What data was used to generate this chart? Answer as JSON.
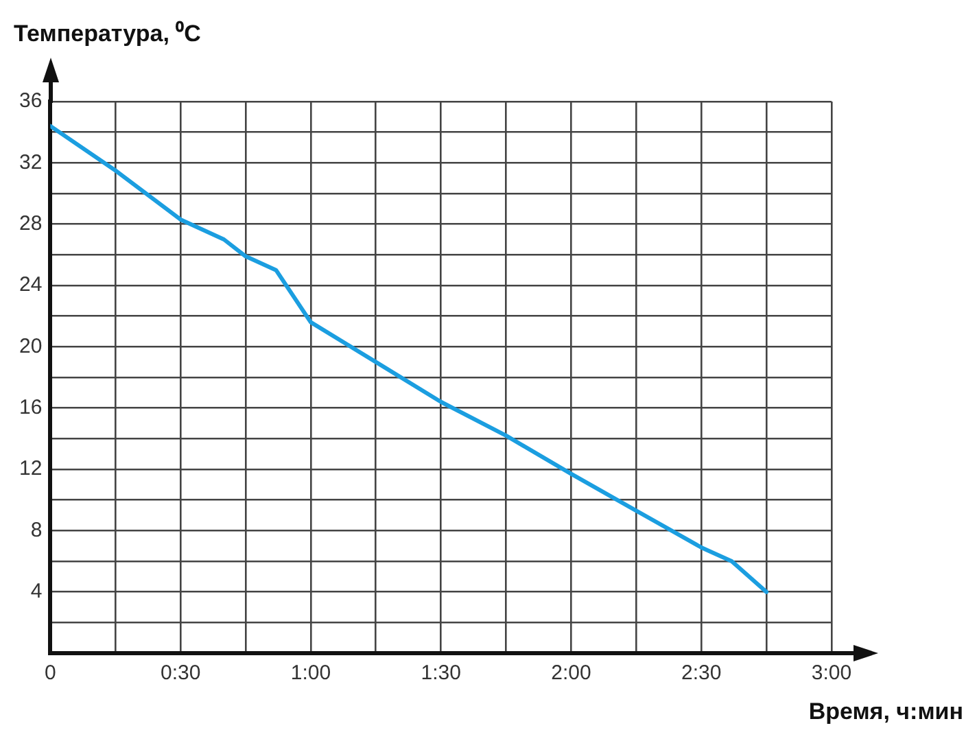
{
  "chart_data": {
    "type": "line",
    "xlabel": "Время, ч:мин",
    "ylabel": "Температура, ⁰C",
    "x": [
      0,
      15,
      30,
      40,
      45,
      52,
      60,
      75,
      90,
      105,
      120,
      135,
      150,
      157,
      165
    ],
    "series": [
      {
        "color": "#1b9ee0",
        "values": [
          34.4,
          31.5,
          28.3,
          27,
          25.9,
          25,
          21.6,
          19,
          16.4,
          14.2,
          11.7,
          9.3,
          6.9,
          6,
          4
        ]
      }
    ],
    "xlim": [
      0,
      180
    ],
    "xticks": [
      {
        "value": 0,
        "label": "0"
      },
      {
        "value": 15,
        "label": null
      },
      {
        "value": 30,
        "label": "0:30"
      },
      {
        "value": 45,
        "label": null
      },
      {
        "value": 60,
        "label": "1:00"
      },
      {
        "value": 75,
        "label": null
      },
      {
        "value": 90,
        "label": "1:30"
      },
      {
        "value": 105,
        "label": null
      },
      {
        "value": 120,
        "label": "2:00"
      },
      {
        "value": 135,
        "label": null
      },
      {
        "value": 150,
        "label": "2:30"
      },
      {
        "value": 165,
        "label": null
      },
      {
        "value": 180,
        "label": "3:00"
      }
    ],
    "ylim": [
      0,
      36
    ],
    "yticks": [
      {
        "value": 0,
        "label": null
      },
      {
        "value": 2,
        "label": null
      },
      4,
      {
        "value": 6,
        "label": null
      },
      8,
      {
        "value": 10,
        "label": null
      },
      12,
      {
        "value": 14,
        "label": null
      },
      16,
      {
        "value": 18,
        "label": null
      },
      20,
      {
        "value": 22,
        "label": null
      },
      24,
      {
        "value": 26,
        "label": null
      },
      28,
      {
        "value": 30,
        "label": null
      },
      32,
      {
        "value": 34,
        "label": null
      },
      36
    ],
    "grid": true,
    "legend": false,
    "marker": "none",
    "line_style": "solid"
  }
}
